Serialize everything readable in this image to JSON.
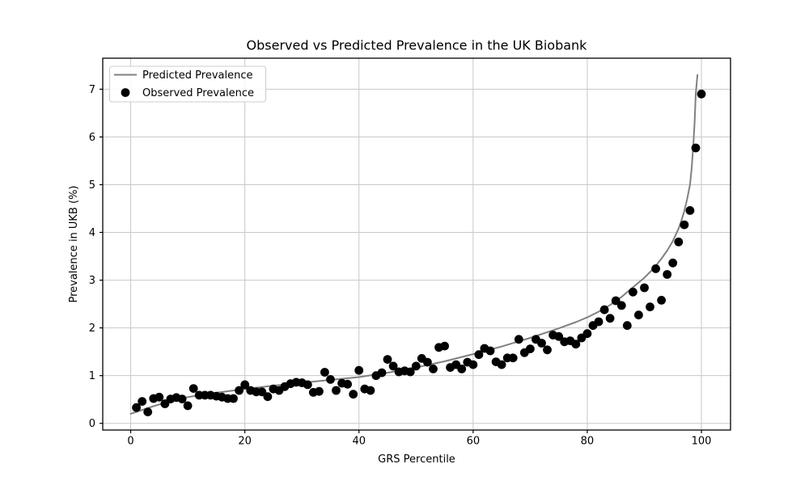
{
  "figure": {
    "background": "#ffffff"
  },
  "chart_data": {
    "type": "scatter",
    "title": "Observed vs Predicted Prevalence in the UK Biobank",
    "xlabel": "GRS Percentile",
    "ylabel": "Prevalence in UKB (%)",
    "x_ticks": [
      0,
      20,
      40,
      60,
      80,
      100
    ],
    "y_ticks": [
      0,
      1,
      2,
      3,
      4,
      5,
      6,
      7
    ],
    "xlim": [
      -4.9,
      105.1
    ],
    "ylim": [
      -0.14,
      7.65
    ],
    "grid": true,
    "grid_color": "#c8c8c8",
    "spine_color": "#000000",
    "legend_position": "upper left",
    "series": [
      {
        "name": "Predicted Prevalence",
        "type": "line",
        "color": "#808080",
        "x": [
          0,
          2,
          4,
          6,
          8,
          10,
          15,
          20,
          25,
          30,
          35,
          40,
          45,
          50,
          55,
          60,
          65,
          70,
          75,
          78,
          80,
          82,
          84,
          86,
          88,
          90,
          91,
          92,
          93,
          94,
          95,
          96,
          96.5,
          97,
          97.5,
          98,
          98.3,
          98.6,
          98.8,
          99,
          99.3
        ],
        "y": [
          0.2,
          0.28,
          0.36,
          0.43,
          0.49,
          0.55,
          0.64,
          0.72,
          0.79,
          0.85,
          0.91,
          0.97,
          1.06,
          1.17,
          1.3,
          1.45,
          1.61,
          1.79,
          1.99,
          2.12,
          2.22,
          2.34,
          2.48,
          2.65,
          2.85,
          3.05,
          3.17,
          3.3,
          3.45,
          3.62,
          3.82,
          4.08,
          4.25,
          4.45,
          4.7,
          5.0,
          5.35,
          5.85,
          6.3,
          6.9,
          7.3
        ]
      },
      {
        "name": "Observed Prevalence",
        "type": "scatter",
        "color": "#000000",
        "x": [
          1,
          2,
          3,
          4,
          5,
          6,
          7,
          8,
          9,
          10,
          11,
          12,
          13,
          14,
          15,
          16,
          17,
          18,
          19,
          20,
          21,
          22,
          23,
          24,
          25,
          26,
          27,
          28,
          29,
          30,
          31,
          32,
          33,
          34,
          35,
          36,
          37,
          38,
          39,
          40,
          41,
          42,
          43,
          44,
          45,
          46,
          47,
          48,
          49,
          50,
          51,
          52,
          53,
          54,
          55,
          56,
          57,
          58,
          59,
          60,
          61,
          62,
          63,
          64,
          65,
          66,
          67,
          68,
          69,
          70,
          71,
          72,
          73,
          74,
          75,
          76,
          77,
          78,
          79,
          80,
          81,
          82,
          83,
          84,
          85,
          86,
          87,
          88,
          89,
          90,
          91,
          92,
          93,
          94,
          95,
          96,
          97,
          98,
          99,
          100
        ],
        "y": [
          0.33,
          0.46,
          0.24,
          0.52,
          0.55,
          0.41,
          0.51,
          0.54,
          0.51,
          0.37,
          0.73,
          0.59,
          0.59,
          0.59,
          0.57,
          0.55,
          0.52,
          0.52,
          0.69,
          0.81,
          0.69,
          0.66,
          0.66,
          0.56,
          0.72,
          0.69,
          0.77,
          0.83,
          0.86,
          0.85,
          0.81,
          0.65,
          0.67,
          1.07,
          0.92,
          0.69,
          0.84,
          0.82,
          0.61,
          1.11,
          0.72,
          0.69,
          1.0,
          1.06,
          1.34,
          1.2,
          1.08,
          1.1,
          1.08,
          1.2,
          1.36,
          1.28,
          1.14,
          1.59,
          1.62,
          1.17,
          1.23,
          1.14,
          1.28,
          1.23,
          1.44,
          1.57,
          1.52,
          1.29,
          1.23,
          1.37,
          1.37,
          1.76,
          1.48,
          1.56,
          1.76,
          1.68,
          1.54,
          1.85,
          1.82,
          1.71,
          1.73,
          1.66,
          1.79,
          1.88,
          2.05,
          2.13,
          2.38,
          2.2,
          2.57,
          2.47,
          2.05,
          2.75,
          2.27,
          2.84,
          2.44,
          3.24,
          2.58,
          3.12,
          3.36,
          3.8,
          4.16,
          4.46,
          5.77,
          6.9
        ]
      }
    ]
  }
}
